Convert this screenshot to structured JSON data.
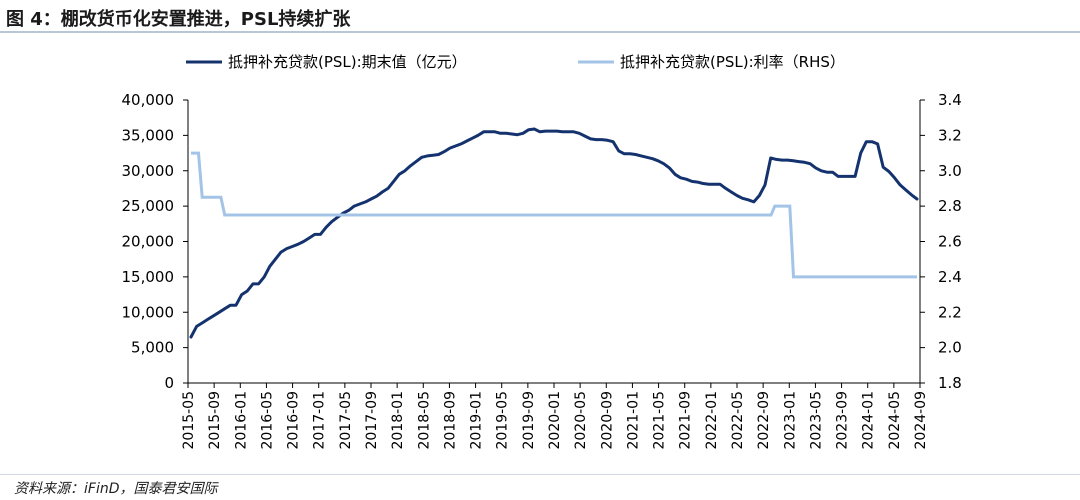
{
  "header": {
    "title": "图 4：棚改货币化安置推进，PSL持续扩张"
  },
  "footer": {
    "source": "资料来源：iFinD，国泰君安国际"
  },
  "colors": {
    "stock_line": "#14336e",
    "rate_line": "#a3c4e6",
    "axis": "#000000"
  },
  "chart_data": {
    "type": "line",
    "title": "图 4：棚改货币化安置推进，PSL持续扩张",
    "x_tick_labels": [
      "2015-05",
      "2015-09",
      "2016-01",
      "2016-05",
      "2016-09",
      "2017-01",
      "2017-05",
      "2017-09",
      "2018-01",
      "2018-05",
      "2018-09",
      "2019-01",
      "2019-05",
      "2019-09",
      "2020-01",
      "2020-05",
      "2020-09",
      "2021-01",
      "2021-05",
      "2021-09",
      "2022-01",
      "2022-05",
      "2022-09",
      "2023-01",
      "2023-05",
      "2023-09",
      "2024-01",
      "2024-05",
      "2024-09"
    ],
    "y_left": {
      "min": 0,
      "max": 40000,
      "ticks": [
        "0",
        "5,000",
        "10,000",
        "15,000",
        "20,000",
        "25,000",
        "30,000",
        "35,000",
        "40,000"
      ]
    },
    "y_right": {
      "min": 1.8,
      "max": 3.4,
      "ticks": [
        "1.8",
        "2.0",
        "2.2",
        "2.4",
        "2.6",
        "2.8",
        "3.0",
        "3.2",
        "3.4"
      ]
    },
    "series": [
      {
        "name": "抵押补充贷款(PSL):期末值（亿元）",
        "axis": "left",
        "values": [
          6500,
          8000,
          8500,
          9000,
          9500,
          10000,
          10500,
          11000,
          11000,
          12500,
          13000,
          14000,
          14000,
          15000,
          16500,
          17500,
          18500,
          19000,
          19300,
          19600,
          20000,
          20500,
          21000,
          21000,
          22000,
          22800,
          23400,
          24000,
          24400,
          25000,
          25300,
          25600,
          26000,
          26400,
          27000,
          27500,
          28500,
          29500,
          30000,
          30700,
          31300,
          31900,
          32100,
          32200,
          32300,
          32700,
          33200,
          33500,
          33800,
          34200,
          34600,
          35000,
          35500,
          35500,
          35500,
          35300,
          35300,
          35200,
          35100,
          35300,
          35800,
          35900,
          35500,
          35600,
          35600,
          35600,
          35500,
          35500,
          35500,
          35300,
          34900,
          34500,
          34400,
          34400,
          34300,
          34100,
          32800,
          32400,
          32400,
          32300,
          32100,
          31900,
          31700,
          31400,
          31000,
          30400,
          29500,
          29000,
          28800,
          28500,
          28400,
          28200,
          28100,
          28100,
          28100,
          27500,
          27000,
          26500,
          26100,
          25900,
          25600,
          26500,
          28000,
          31800,
          31600,
          31500,
          31500,
          31400,
          31300,
          31200,
          31000,
          30400,
          30000,
          29800,
          29800,
          29200,
          29200,
          29200,
          29200,
          32500,
          34100,
          34100,
          33800,
          30500,
          29900,
          29000,
          28000,
          27300,
          26600,
          26000
        ]
      },
      {
        "name": "抵押补充贷款(PSL):利率（RHS）",
        "axis": "right",
        "values": [
          3.1,
          3.1,
          3.1,
          2.85,
          2.85,
          2.85,
          2.85,
          2.85,
          2.85,
          2.75,
          2.75,
          2.75,
          2.75,
          2.75,
          2.75,
          2.75,
          2.75,
          2.75,
          2.75,
          2.75,
          2.75,
          2.75,
          2.75,
          2.75,
          2.75,
          2.75,
          2.75,
          2.75,
          2.75,
          2.75,
          2.75,
          2.75,
          2.75,
          2.75,
          2.75,
          2.75,
          2.75,
          2.75,
          2.75,
          2.75,
          2.75,
          2.75,
          2.75,
          2.75,
          2.75,
          2.75,
          2.75,
          2.75,
          2.75,
          2.75,
          2.75,
          2.75,
          2.75,
          2.75,
          2.75,
          2.75,
          2.75,
          2.75,
          2.75,
          2.75,
          2.75,
          2.75,
          2.75,
          2.75,
          2.75,
          2.75,
          2.75,
          2.75,
          2.75,
          2.75,
          2.75,
          2.75,
          2.75,
          2.75,
          2.75,
          2.75,
          2.75,
          2.75,
          2.75,
          2.75,
          2.75,
          2.75,
          2.75,
          2.75,
          2.75,
          2.75,
          2.75,
          2.75,
          2.75,
          2.75,
          2.75,
          2.75,
          2.75,
          2.75,
          2.75,
          2.75,
          2.75,
          2.75,
          2.75,
          2.75,
          2.75,
          2.75,
          2.75,
          2.75,
          2.75,
          2.75,
          2.75,
          2.75,
          2.75,
          2.75,
          2.75,
          2.75,
          2.75,
          2.75,
          2.75,
          2.75,
          2.75,
          2.75,
          2.75,
          2.75,
          2.75,
          2.75,
          2.75,
          2.75,
          2.75,
          2.75,
          2.75,
          2.75,
          2.75,
          2.75,
          2.75,
          2.75,
          2.75,
          2.75,
          2.75,
          2.75,
          2.75,
          2.75,
          2.75,
          2.75,
          2.75,
          2.75,
          2.75,
          2.75,
          2.75,
          2.75,
          2.75,
          2.75,
          2.75,
          2.75,
          2.75,
          2.75,
          2.75,
          2.75,
          2.75,
          2.75,
          2.8,
          2.8,
          2.8,
          2.8,
          2.8,
          2.4,
          2.4,
          2.4,
          2.4,
          2.4,
          2.4,
          2.4,
          2.4,
          2.4,
          2.4,
          2.4,
          2.4,
          2.4,
          2.4,
          2.4,
          2.4,
          2.4,
          2.4,
          2.4,
          2.4,
          2.4,
          2.4,
          2.4,
          2.4,
          2.4,
          2.4,
          2.4,
          2.4,
          2.4,
          2.4,
          2.4,
          2.4,
          2.4,
          2.4
        ]
      }
    ],
    "legend": {
      "position": "top",
      "items": [
        "抵押补充贷款(PSL):期末值（亿元）",
        "抵押补充贷款(PSL):利率（RHS）"
      ]
    },
    "grid": false
  }
}
